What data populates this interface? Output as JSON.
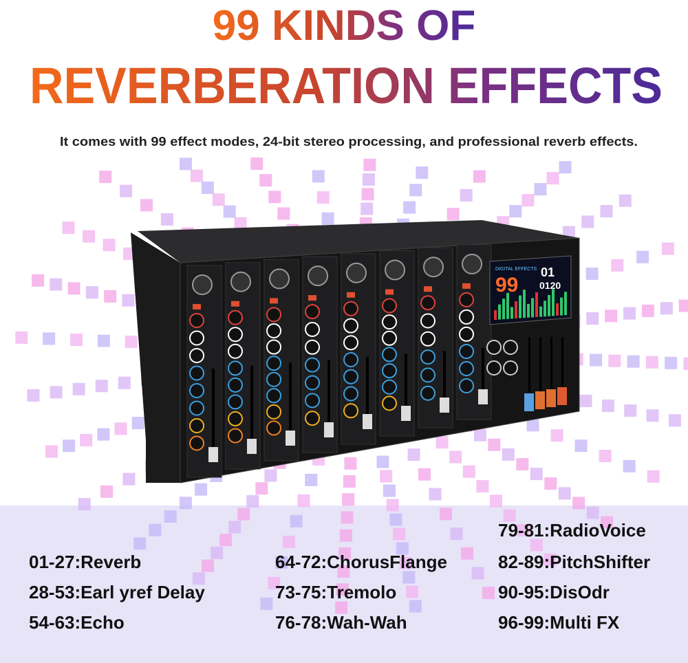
{
  "header": {
    "title_line1": "99 KINDS OF",
    "title_line2": "REVERBERATION EFFECTS",
    "subtitle": "It comes with 99 effect modes, 24-bit stereo processing, and professional reverb effects."
  },
  "display": {
    "label": "DIGITAL EFFECTS",
    "effect_number": "99",
    "program": "01",
    "time": "0120"
  },
  "effects": {
    "columns": [
      [
        "01-27:Reverb",
        "28-53:Earl yref Delay",
        "54-63:Echo"
      ],
      [
        "64-72:ChorusFlange",
        "73-75:Tremolo",
        "76-78:Wah-Wah"
      ],
      [
        "79-81:RadioVoice",
        "82-89:PitchShifter",
        "90-95:DisOdr",
        "96-99:Multi FX"
      ]
    ]
  }
}
